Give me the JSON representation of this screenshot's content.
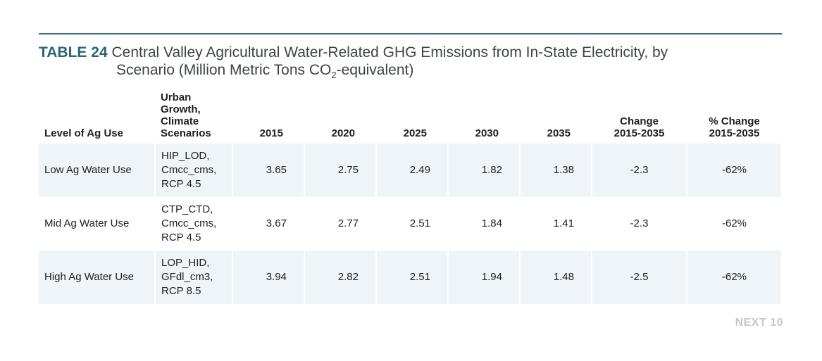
{
  "title": {
    "label": "TABLE 24",
    "line1": "Central Valley Agricultural Water-Related GHG Emissions from In-State Electricity, by",
    "line2_pre": "Scenario (Million Metric Tons CO",
    "line2_sub": "2",
    "line2_post": "-equivalent)"
  },
  "headers": {
    "level": "Level of Ag Use",
    "scenario": [
      "Urban",
      "Growth,",
      "Climate",
      "Scenarios"
    ],
    "y2015": "2015",
    "y2020": "2020",
    "y2025": "2025",
    "y2030": "2030",
    "y2035": "2035",
    "change": [
      "Change",
      "2015-2035"
    ],
    "pct_change": [
      "% Change",
      "2015-2035"
    ]
  },
  "rows": [
    {
      "level": "Low Ag Water Use",
      "scenario": [
        "HIP_LOD,",
        "Cmcc_cms,",
        "RCP 4.5"
      ],
      "v2015": "3.65",
      "v2020": "2.75",
      "v2025": "2.49",
      "v2030": "1.82",
      "v2035": "1.38",
      "change": "-2.3",
      "pct": "-62%"
    },
    {
      "level": "Mid Ag Water Use",
      "scenario": [
        "CTP_CTD,",
        "Cmcc_cms,",
        "RCP 4.5"
      ],
      "v2015": "3.67",
      "v2020": "2.77",
      "v2025": "2.51",
      "v2030": "1.84",
      "v2035": "1.41",
      "change": "-2.3",
      "pct": "-62%"
    },
    {
      "level": "High Ag Water Use",
      "scenario": [
        "LOP_HID,",
        "GFdl_cm3,",
        "RCP 8.5"
      ],
      "v2015": "3.94",
      "v2020": "2.82",
      "v2025": "2.51",
      "v2030": "1.94",
      "v2035": "1.48",
      "change": "-2.5",
      "pct": "-62%"
    }
  ],
  "footer": "NEXT 10",
  "colors": {
    "accent": "#2b6378",
    "rule": "#3a6b7c",
    "row_shade": "#eef4f7",
    "footer": "#c3c8cc"
  }
}
